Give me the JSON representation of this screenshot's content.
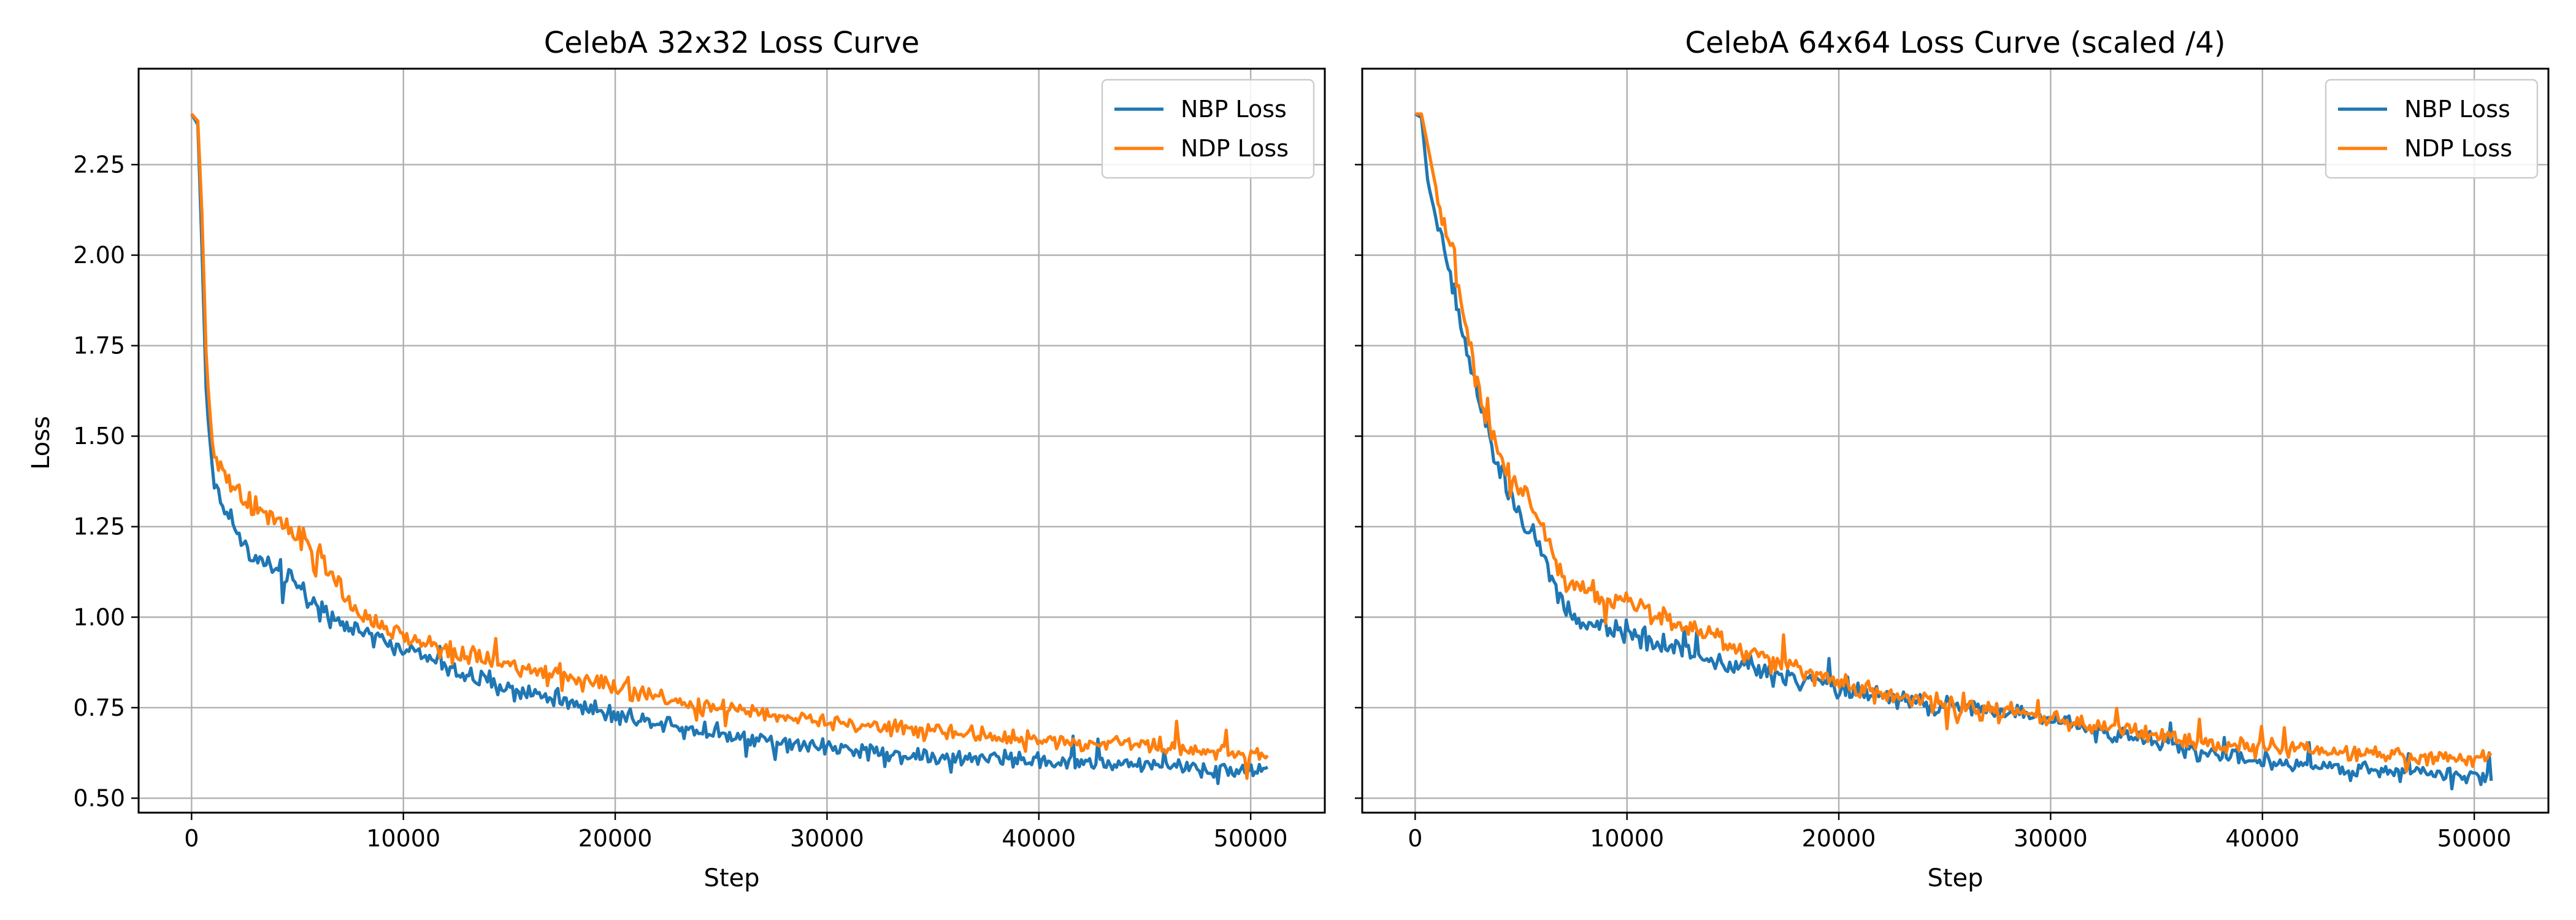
{
  "colors": {
    "nbp": "#1f77b4",
    "ndp": "#ff7f0e",
    "grid": "#b0b0b0"
  },
  "chart_data": [
    {
      "type": "line",
      "title": "CelebA 32x32 Loss Curve",
      "xlabel": "Step",
      "ylabel": "Loss",
      "xlim": [
        -2500,
        53500
      ],
      "ylim": [
        0.46,
        2.515
      ],
      "xticks": [
        0,
        10000,
        20000,
        30000,
        40000,
        50000
      ],
      "xtick_labels": [
        "0",
        "10000",
        "20000",
        "30000",
        "40000",
        "50000"
      ],
      "yticks": [
        0.5,
        0.75,
        1.0,
        1.25,
        1.5,
        1.75,
        2.0,
        2.25
      ],
      "ytick_labels": [
        "0.50",
        "0.75",
        "1.00",
        "1.25",
        "1.50",
        "1.75",
        "2.00",
        "2.25"
      ],
      "grid": true,
      "legend_position": "top-right",
      "series": [
        {
          "name": "NBP Loss",
          "color": "#1f77b4",
          "x": [
            0,
            300,
            500,
            700,
            1000,
            1500,
            2000,
            2500,
            3000,
            3500,
            4000,
            5000,
            6000,
            7000,
            8000,
            9000,
            10000,
            11000,
            12000,
            13000,
            14000,
            15000,
            16000,
            17000,
            18000,
            19000,
            20000,
            22000,
            24000,
            26000,
            28000,
            30000,
            32000,
            34000,
            36000,
            38000,
            40000,
            42000,
            44000,
            46000,
            48000,
            50000,
            50800
          ],
          "y": [
            2.39,
            2.36,
            2.0,
            1.6,
            1.4,
            1.3,
            1.26,
            1.2,
            1.16,
            1.14,
            1.12,
            1.09,
            1.03,
            0.99,
            0.96,
            0.93,
            0.92,
            0.89,
            0.86,
            0.84,
            0.82,
            0.8,
            0.79,
            0.78,
            0.76,
            0.75,
            0.73,
            0.71,
            0.69,
            0.67,
            0.65,
            0.64,
            0.63,
            0.62,
            0.61,
            0.61,
            0.6,
            0.6,
            0.59,
            0.59,
            0.58,
            0.58,
            0.58
          ]
        },
        {
          "name": "NDP Loss",
          "color": "#ff7f0e",
          "x": [
            0,
            300,
            500,
            700,
            1000,
            1500,
            2000,
            2500,
            3000,
            3500,
            4000,
            5000,
            6000,
            7000,
            8000,
            9000,
            10000,
            11000,
            12000,
            13000,
            14000,
            15000,
            16000,
            17000,
            18000,
            19000,
            20000,
            22000,
            24000,
            26000,
            28000,
            30000,
            32000,
            34000,
            36000,
            38000,
            40000,
            42000,
            44000,
            46000,
            48000,
            50000,
            50800
          ],
          "y": [
            2.39,
            2.37,
            2.1,
            1.7,
            1.46,
            1.4,
            1.35,
            1.32,
            1.3,
            1.29,
            1.27,
            1.23,
            1.17,
            1.07,
            1.0,
            0.97,
            0.95,
            0.93,
            0.91,
            0.89,
            0.88,
            0.87,
            0.86,
            0.85,
            0.83,
            0.82,
            0.8,
            0.78,
            0.76,
            0.74,
            0.72,
            0.71,
            0.7,
            0.69,
            0.68,
            0.67,
            0.66,
            0.65,
            0.65,
            0.64,
            0.63,
            0.62,
            0.62
          ]
        }
      ]
    },
    {
      "type": "line",
      "title": "CelebA 64x64 Loss Curve (scaled /4)",
      "xlabel": "Step",
      "ylabel": "",
      "xlim": [
        -2500,
        53500
      ],
      "ylim": [
        0.46,
        2.515
      ],
      "xticks": [
        0,
        10000,
        20000,
        30000,
        40000,
        50000
      ],
      "xtick_labels": [
        "0",
        "10000",
        "20000",
        "30000",
        "40000",
        "50000"
      ],
      "yticks": [
        0.5,
        0.75,
        1.0,
        1.25,
        1.5,
        1.75,
        2.0,
        2.25
      ],
      "ytick_labels": [],
      "grid": true,
      "legend_position": "top-right",
      "series": [
        {
          "name": "NBP Loss",
          "color": "#1f77b4",
          "x": [
            0,
            300,
            600,
            1000,
            1500,
            2000,
            2500,
            3000,
            3500,
            4000,
            4500,
            5000,
            5500,
            6000,
            6500,
            7000,
            8000,
            9000,
            10000,
            11000,
            12000,
            13000,
            14000,
            15000,
            16000,
            17000,
            18000,
            19000,
            20000,
            22000,
            24000,
            26000,
            28000,
            30000,
            32000,
            34000,
            36000,
            38000,
            40000,
            42000,
            44000,
            46000,
            48000,
            50000,
            50800
          ],
          "y": [
            2.39,
            2.38,
            2.2,
            2.1,
            1.98,
            1.85,
            1.72,
            1.6,
            1.5,
            1.4,
            1.33,
            1.28,
            1.23,
            1.17,
            1.1,
            1.03,
            0.98,
            0.97,
            0.96,
            0.94,
            0.92,
            0.9,
            0.88,
            0.87,
            0.86,
            0.84,
            0.83,
            0.82,
            0.8,
            0.78,
            0.76,
            0.75,
            0.74,
            0.72,
            0.69,
            0.67,
            0.64,
            0.62,
            0.6,
            0.59,
            0.58,
            0.58,
            0.57,
            0.56,
            0.56
          ]
        },
        {
          "name": "NDP Loss",
          "color": "#ff7f0e",
          "x": [
            0,
            300,
            600,
            1000,
            1500,
            2000,
            2500,
            3000,
            3500,
            4000,
            4500,
            5000,
            5500,
            6000,
            6500,
            7000,
            8000,
            9000,
            10000,
            11000,
            12000,
            13000,
            14000,
            15000,
            16000,
            17000,
            18000,
            19000,
            20000,
            22000,
            24000,
            26000,
            28000,
            30000,
            32000,
            34000,
            36000,
            38000,
            40000,
            42000,
            44000,
            46000,
            48000,
            50000,
            50800
          ],
          "y": [
            2.39,
            2.39,
            2.3,
            2.18,
            2.07,
            1.93,
            1.77,
            1.63,
            1.53,
            1.45,
            1.4,
            1.35,
            1.31,
            1.25,
            1.17,
            1.1,
            1.07,
            1.05,
            1.04,
            1.02,
            1.0,
            0.97,
            0.95,
            0.92,
            0.9,
            0.88,
            0.86,
            0.84,
            0.82,
            0.79,
            0.77,
            0.75,
            0.74,
            0.72,
            0.7,
            0.68,
            0.66,
            0.65,
            0.64,
            0.63,
            0.62,
            0.62,
            0.61,
            0.61,
            0.61
          ]
        }
      ]
    }
  ]
}
